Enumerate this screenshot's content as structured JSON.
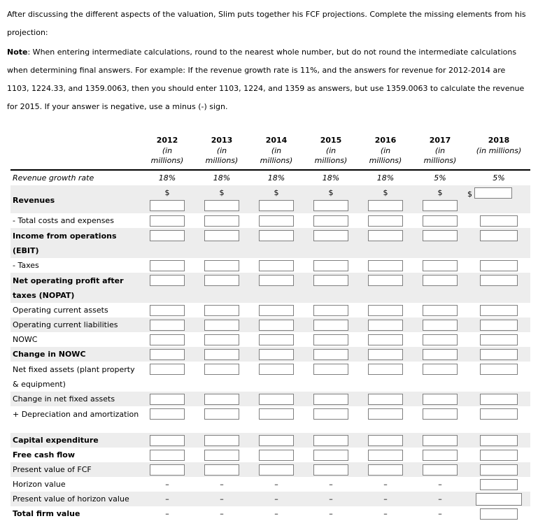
{
  "intro": "After discussing the different aspects of the valuation, Slim puts together his FCF projections. Complete the missing elements from his projection:",
  "note": {
    "label": "Note",
    "text": ": When entering intermediate calculations, round to the nearest whole number, but do not round the intermediate calculations when determining final answers. For example: If the revenue growth rate is 11%, and the answers for revenue for 2012-2014 are 1103, 1224.33, and 1359.0063, then you should enter 1103, 1224, and 1359 as answers, but use 1359.0063 to calculate the revenue for 2015. If your answer is negative, use a minus (-) sign."
  },
  "table": {
    "dollar_sign": "$",
    "dash": "–",
    "columns": [
      {
        "year": "2012",
        "unit": "(in millions)"
      },
      {
        "year": "2013",
        "unit": "(in millions)"
      },
      {
        "year": "2014",
        "unit": "(in millions)"
      },
      {
        "year": "2015",
        "unit": "(in millions)"
      },
      {
        "year": "2016",
        "unit": "(in millions)"
      },
      {
        "year": "2017",
        "unit": "(in millions)"
      },
      {
        "year": "2018",
        "unit": "(in millions)"
      }
    ],
    "rows": [
      {
        "id": "revenue-growth-rate",
        "label": "Revenue growth rate",
        "style": "italic",
        "type": "values",
        "values": [
          "18%",
          "18%",
          "18%",
          "18%",
          "18%",
          "5%",
          "5%"
        ]
      },
      {
        "id": "revenues",
        "label": "Revenues",
        "style": "bold",
        "type": "dollar"
      },
      {
        "id": "total-costs-and-expenses",
        "label": "- Total costs and expenses",
        "style": "normal",
        "type": "inputs"
      },
      {
        "id": "income-from-operations-ebit",
        "label": "Income from operations (EBIT)",
        "style": "bold",
        "type": "inputs",
        "tall": true
      },
      {
        "id": "taxes",
        "label": "- Taxes",
        "style": "normal",
        "type": "inputs"
      },
      {
        "id": "nopat",
        "label": "Net operating profit after taxes (NOPAT)",
        "style": "bold",
        "type": "inputs",
        "tall": true
      },
      {
        "id": "operating-current-assets",
        "label": "Operating current assets",
        "style": "normal",
        "type": "inputs"
      },
      {
        "id": "operating-current-liabilities",
        "label": "Operating current liabilities",
        "style": "normal",
        "type": "inputs"
      },
      {
        "id": "nowc",
        "label": "NOWC",
        "style": "normal",
        "type": "inputs"
      },
      {
        "id": "change-in-nowc",
        "label": "Change in NOWC",
        "style": "bold",
        "type": "inputs"
      },
      {
        "id": "net-fixed-assets",
        "label": "Net fixed assets (plant property & equipment)",
        "style": "normal",
        "type": "inputs",
        "tall": true
      },
      {
        "id": "change-in-net-fixed-assets",
        "label": "Change in net fixed assets",
        "style": "normal",
        "type": "inputs"
      },
      {
        "id": "depreciation-and-amortization",
        "label": "+ Depreciation and amortization",
        "style": "normal",
        "type": "inputs",
        "tall": true
      },
      {
        "id": "capital-expenditure",
        "label": "Capital expenditure",
        "style": "bold",
        "type": "inputs"
      },
      {
        "id": "free-cash-flow",
        "label": "Free cash flow",
        "style": "bold",
        "type": "inputs"
      },
      {
        "id": "present-value-of-fcf",
        "label": "Present value of FCF",
        "style": "normal",
        "type": "inputs"
      },
      {
        "id": "horizon-value",
        "label": "Horizon value",
        "style": "normal",
        "type": "dash-last-input"
      },
      {
        "id": "present-value-of-horizon-value",
        "label": "Present value of horizon value",
        "style": "normal",
        "type": "dash-last-input",
        "wide_input": true
      },
      {
        "id": "total-firm-value",
        "label": "Total firm value",
        "style": "bold",
        "type": "dash-last-input"
      }
    ]
  }
}
